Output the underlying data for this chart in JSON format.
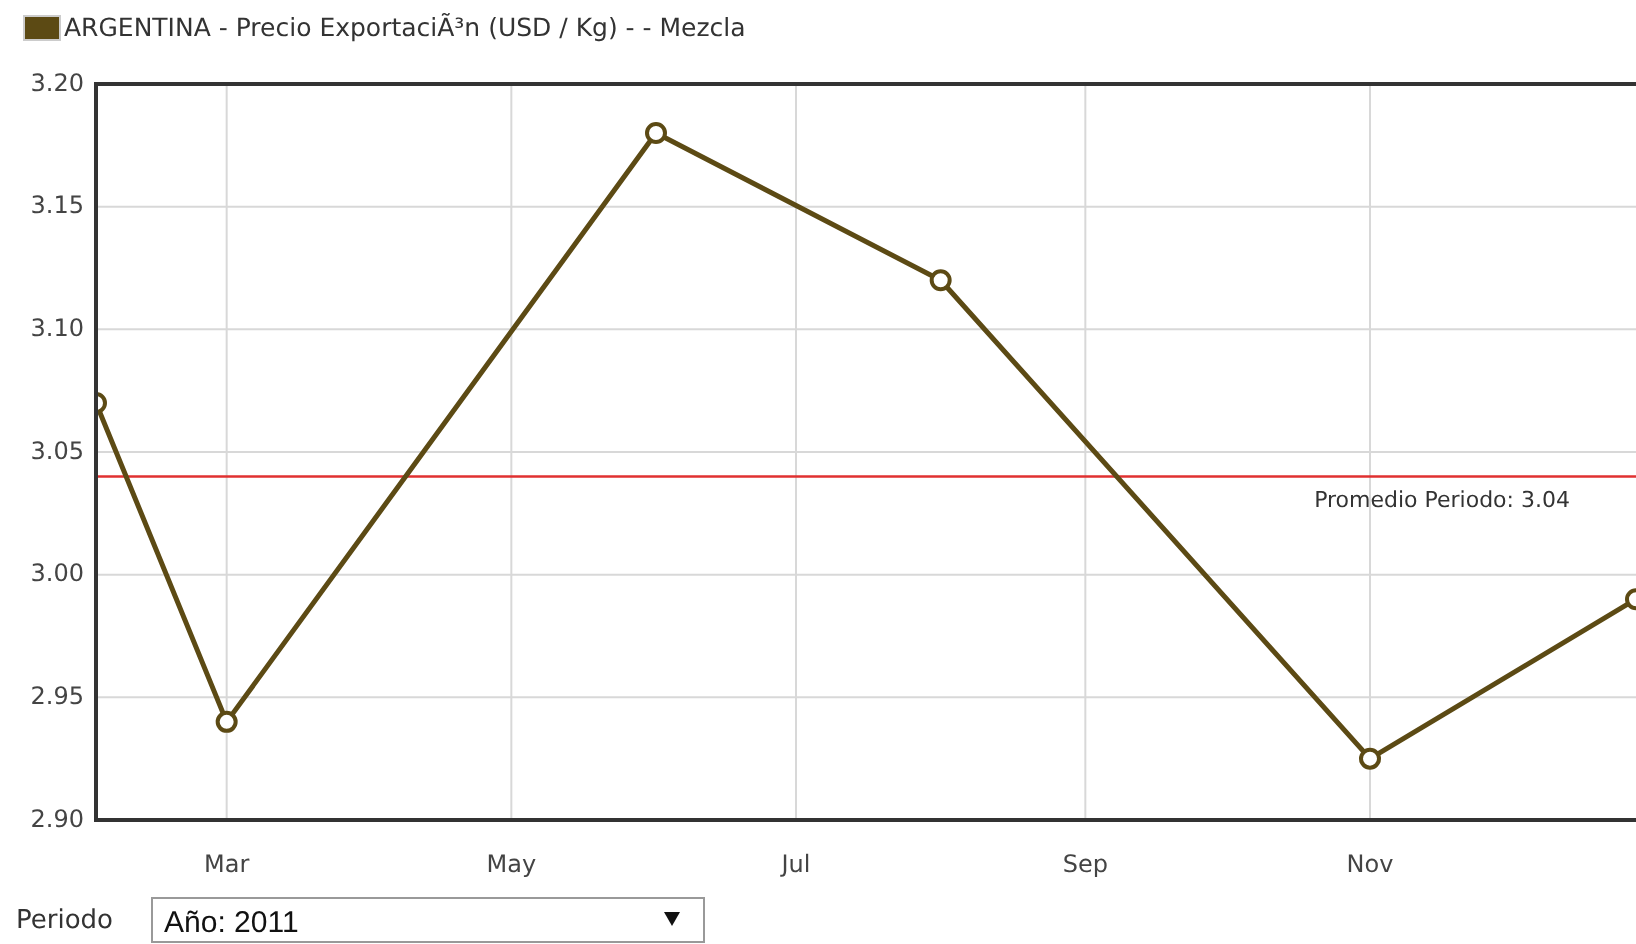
{
  "chart_data": {
    "type": "line",
    "x": [
      "2011-02-01",
      "2011-03-01",
      "2011-06-01",
      "2011-08-01",
      "2011-11-01",
      "2011-12-28"
    ],
    "series": [
      {
        "name": "ARGENTINA - Precio ExportaciÃ³n (USD / Kg) - - Mezcla",
        "color": "#5c4a14",
        "values": [
          3.07,
          2.94,
          3.18,
          3.12,
          2.925,
          2.99
        ]
      }
    ],
    "xlim": [
      "2011-02-01",
      "2011-12-28"
    ],
    "xticks": [
      {
        "value": "2011-03-01",
        "label": "Mar"
      },
      {
        "value": "2011-05-01",
        "label": "May"
      },
      {
        "value": "2011-07-01",
        "label": "Jul"
      },
      {
        "value": "2011-09-01",
        "label": "Sep"
      },
      {
        "value": "2011-11-01",
        "label": "Nov"
      }
    ],
    "ylim": [
      2.9,
      3.2
    ],
    "yticks": [
      {
        "value": 2.9,
        "label": "2.90"
      },
      {
        "value": 2.95,
        "label": "2.95"
      },
      {
        "value": 3.0,
        "label": "3.00"
      },
      {
        "value": 3.05,
        "label": "3.05"
      },
      {
        "value": 3.1,
        "label": "3.10"
      },
      {
        "value": 3.15,
        "label": "3.15"
      },
      {
        "value": 3.2,
        "label": "3.20"
      }
    ],
    "ref_lines": [
      {
        "axis": "y",
        "value": 3.04,
        "label": "Promedio Periodo: 3.04",
        "color": "#e03030"
      }
    ],
    "grid": true,
    "legend": "top left",
    "marker": "circle",
    "line_style": "solid",
    "annotations": [
      "Periodo",
      "Año: 2011"
    ]
  }
}
